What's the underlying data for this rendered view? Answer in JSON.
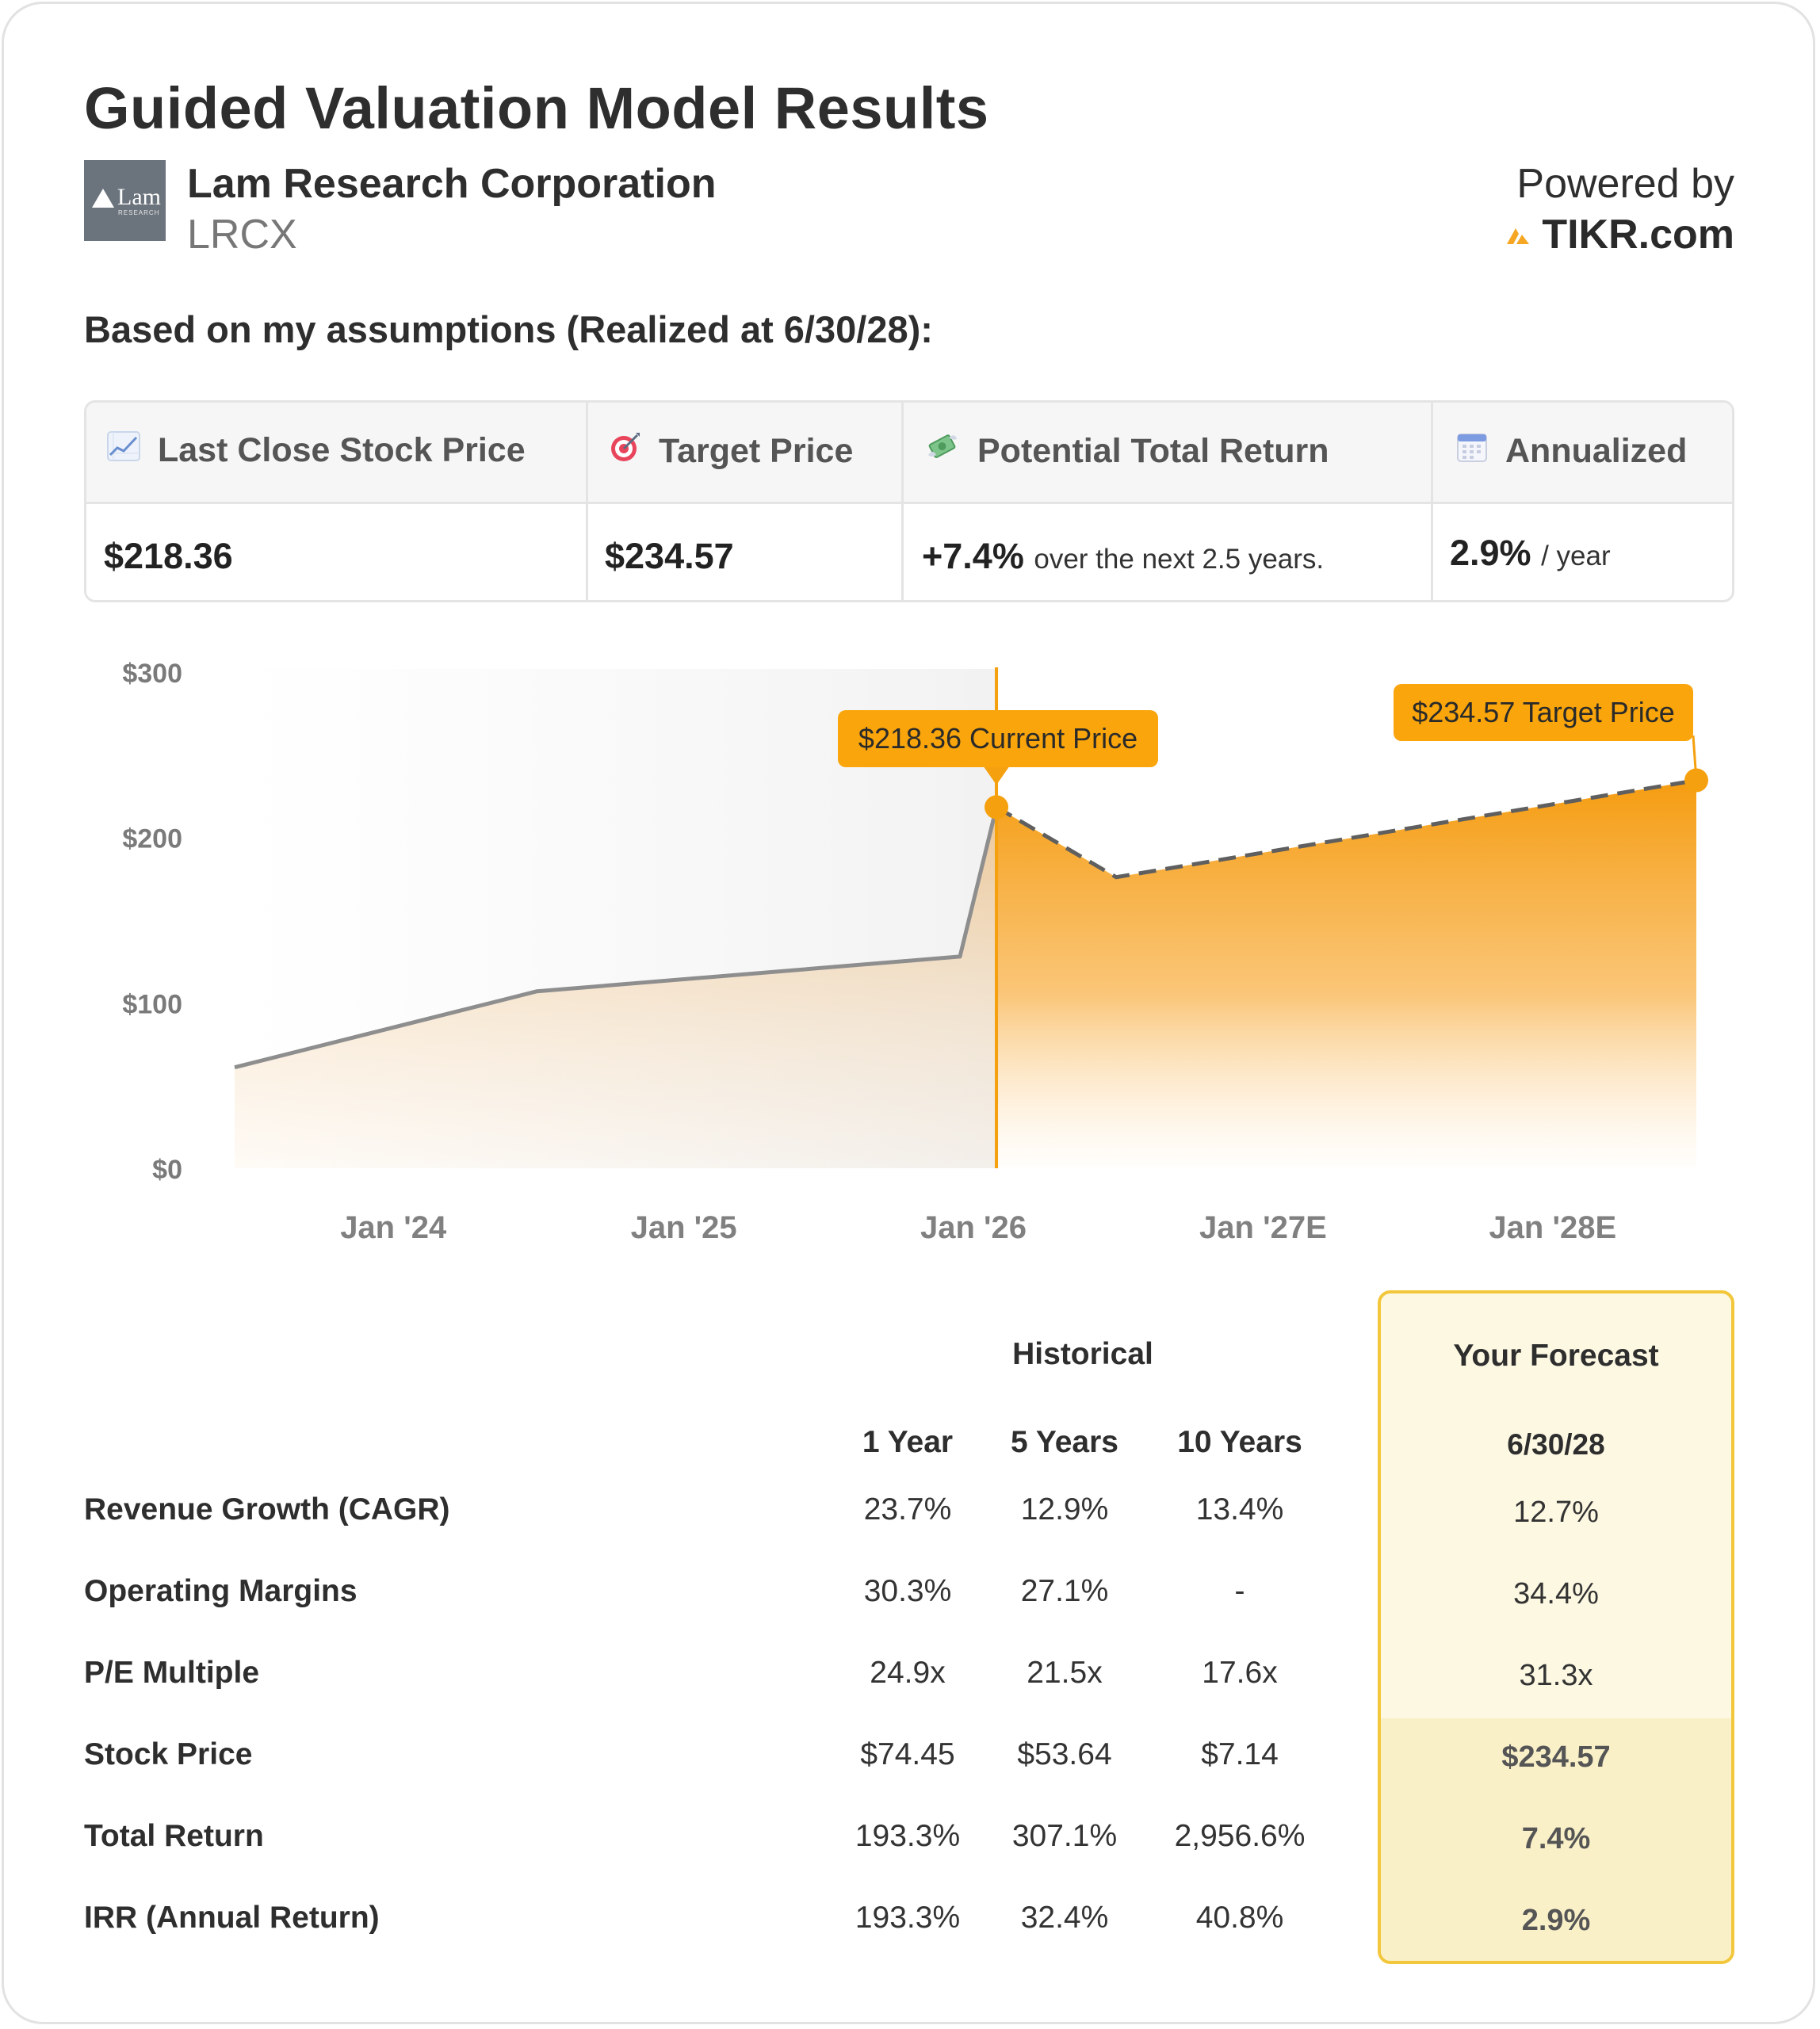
{
  "header": {
    "title": "Guided Valuation Model Results",
    "company_name": "Lam Research Corporation",
    "ticker": "LRCX",
    "logo_text": "Lam",
    "logo_subtext": "RESEARCH",
    "powered_by": "Powered by",
    "brand": "TIKR.com",
    "brand_color": "#f5a623"
  },
  "assumptions_heading": "Based on my assumptions (Realized at 6/30/28):",
  "summary": {
    "headers": {
      "last_close": "Last Close Stock Price",
      "target": "Target Price",
      "return": "Potential Total Return",
      "annualized": "Annualized"
    },
    "icons": [
      "chart-increasing-icon",
      "target-icon",
      "money-with-wings-icon",
      "calendar-icon"
    ],
    "values": {
      "last_close": "$218.36",
      "target": "$234.57",
      "return_value": "+7.4%",
      "return_note": "over the next 2.5 years.",
      "annualized_value": "2.9%",
      "annualized_note": "/ year"
    }
  },
  "chart_data": {
    "type": "area",
    "y_ticks": [
      "$300",
      "$200",
      "$100",
      "$0"
    ],
    "ylim": [
      0,
      300
    ],
    "x_tick_labels": [
      "Jan '24",
      "Jan '25",
      "Jan '26",
      "Jan '27E",
      "Jan '28E"
    ],
    "x_tick_dates": [
      "2024-01-01",
      "2025-01-01",
      "2026-01-01",
      "2027-01-01",
      "2028-01-01"
    ],
    "xlim": [
      "2023-06-15",
      "2028-06-30"
    ],
    "historical": {
      "x": [
        "2023-06-15",
        "2024-06-30",
        "2025-12-15",
        "2026-01-30"
      ],
      "y": [
        61,
        107,
        128,
        218.36
      ]
    },
    "forecast": {
      "x": [
        "2026-01-30",
        "2026-06-30",
        "2028-06-30"
      ],
      "y": [
        218.36,
        176,
        234.57
      ]
    },
    "current_price": {
      "date": "2026-01-30",
      "value": 218.36,
      "label": "$218.36 Current Price"
    },
    "target_price": {
      "date": "2028-06-30",
      "value": 234.57,
      "label": "$234.57 Target Price"
    },
    "colors": {
      "accent": "#f5a00e",
      "historical_line": "#8e8e8e",
      "forecast_line": "#5f5f5f"
    },
    "grid": false
  },
  "table": {
    "historical_label": "Historical",
    "forecast_label": "Your Forecast",
    "periods": [
      "1 Year",
      "5 Years",
      "10 Years"
    ],
    "forecast_date": "6/30/28",
    "rows": [
      {
        "label": "Revenue Growth (CAGR)",
        "values": [
          "23.7%",
          "12.9%",
          "13.4%"
        ],
        "forecast": "12.7%"
      },
      {
        "label": "Operating Margins",
        "values": [
          "30.3%",
          "27.1%",
          "-"
        ],
        "forecast": "34.4%"
      },
      {
        "label": "P/E Multiple",
        "values": [
          "24.9x",
          "21.5x",
          "17.6x"
        ],
        "forecast": "31.3x"
      },
      {
        "label": "Stock Price",
        "values": [
          "$74.45",
          "$53.64",
          "$7.14"
        ],
        "forecast": "$234.57"
      },
      {
        "label": "Total Return",
        "values": [
          "193.3%",
          "307.1%",
          "2,956.6%"
        ],
        "forecast": "7.4%"
      },
      {
        "label": "IRR (Annual Return)",
        "values": [
          "193.3%",
          "32.4%",
          "40.8%"
        ],
        "forecast": "2.9%"
      }
    ]
  }
}
